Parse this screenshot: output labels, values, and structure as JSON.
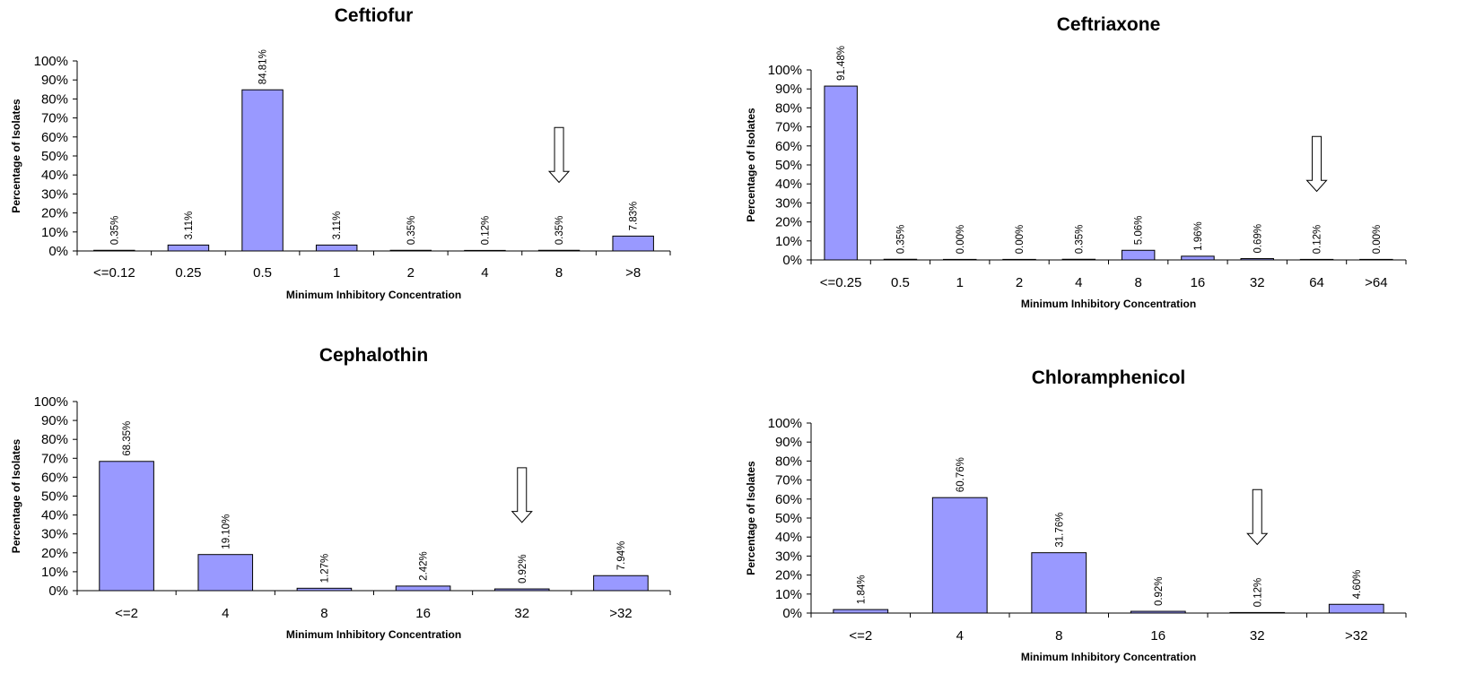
{
  "chart_data": [
    {
      "type": "bar",
      "title": "Ceftiofur",
      "xlabel": "Minimum Inhibitory Concentration",
      "ylabel": "Percentage of Isolates",
      "ylim": [
        0,
        100
      ],
      "yticks": [
        "0%",
        "10%",
        "20%",
        "30%",
        "40%",
        "50%",
        "60%",
        "70%",
        "80%",
        "90%",
        "100%"
      ],
      "categories": [
        "<=0.12",
        "0.25",
        "0.5",
        "1",
        "2",
        "4",
        "8",
        ">8"
      ],
      "values": [
        0.35,
        3.11,
        84.81,
        3.11,
        0.35,
        0.12,
        0.35,
        7.83
      ],
      "data_labels": [
        "0.35%",
        "3.11%",
        "84.81%",
        "3.11%",
        "0.35%",
        "0.12%",
        "0.35%",
        "7.83%"
      ],
      "breakpoint_arrow_category": "8",
      "bar_color": "#9999ff",
      "grid": false,
      "legend": "none"
    },
    {
      "type": "bar",
      "title": "Ceftriaxone",
      "xlabel": "Minimum Inhibitory Concentration",
      "ylabel": "Percentage of Isolates",
      "ylim": [
        0,
        100
      ],
      "yticks": [
        "0%",
        "10%",
        "20%",
        "30%",
        "40%",
        "50%",
        "60%",
        "70%",
        "80%",
        "90%",
        "100%"
      ],
      "categories": [
        "<=0.25",
        "0.5",
        "1",
        "2",
        "4",
        "8",
        "16",
        "32",
        "64",
        ">64"
      ],
      "values": [
        91.48,
        0.35,
        0.0,
        0.0,
        0.35,
        5.06,
        1.96,
        0.69,
        0.12,
        0.0
      ],
      "data_labels": [
        "91.48%",
        "0.35%",
        "0.00%",
        "0.00%",
        "0.35%",
        "5.06%",
        "1.96%",
        "0.69%",
        "0.12%",
        "0.00%"
      ],
      "breakpoint_arrow_category": "64",
      "bar_color": "#9999ff",
      "grid": false,
      "legend": "none"
    },
    {
      "type": "bar",
      "title": "Cephalothin",
      "xlabel": "Minimum Inhibitory Concentration",
      "ylabel": "Percentage of Isolates",
      "ylim": [
        0,
        100
      ],
      "yticks": [
        "0%",
        "10%",
        "20%",
        "30%",
        "40%",
        "50%",
        "60%",
        "70%",
        "80%",
        "90%",
        "100%"
      ],
      "categories": [
        "<=2",
        "4",
        "8",
        "16",
        "32",
        ">32"
      ],
      "values": [
        68.35,
        19.1,
        1.27,
        2.42,
        0.92,
        7.94
      ],
      "data_labels": [
        "68.35%",
        "19.10%",
        "1.27%",
        "2.42%",
        "0.92%",
        "7.94%"
      ],
      "breakpoint_arrow_category": "32",
      "bar_color": "#9999ff",
      "grid": false,
      "legend": "none"
    },
    {
      "type": "bar",
      "title": "Chloramphenicol",
      "xlabel": "Minimum Inhibitory Concentration",
      "ylabel": "Percentage of Isolates",
      "ylim": [
        0,
        100
      ],
      "yticks": [
        "0%",
        "10%",
        "20%",
        "30%",
        "40%",
        "50%",
        "60%",
        "70%",
        "80%",
        "90%",
        "100%"
      ],
      "categories": [
        "<=2",
        "4",
        "8",
        "16",
        "32",
        ">32"
      ],
      "values": [
        1.84,
        60.76,
        31.76,
        0.92,
        0.12,
        4.6
      ],
      "data_labels": [
        "1.84%",
        "60.76%",
        "31.76%",
        "0.92%",
        "0.12%",
        "4.60%"
      ],
      "breakpoint_arrow_category": "32",
      "bar_color": "#9999ff",
      "grid": false,
      "legend": "none"
    }
  ]
}
